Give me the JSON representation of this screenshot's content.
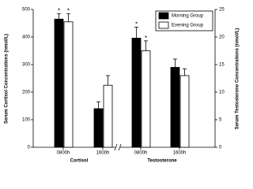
{
  "chart_data": [
    {
      "type": "bar",
      "ylabel": "Serum Cortisol Concentrations (nmol/L)",
      "group": "Cortisol",
      "categories": [
        "0800h",
        "1600h"
      ],
      "ylim": [
        0,
        500
      ],
      "yticks": [
        0,
        100,
        200,
        300,
        400,
        500
      ],
      "legend": "upper right",
      "series": [
        {
          "name": "Morning Group",
          "color": "#000000",
          "values": [
            465,
            140
          ],
          "errors": [
            20,
            25
          ],
          "markers": [
            "*",
            null
          ]
        },
        {
          "name": "Evening Group",
          "color": "#ffffff",
          "values": [
            455,
            225
          ],
          "errors": [
            30,
            35
          ],
          "markers": [
            "*",
            null
          ]
        }
      ]
    },
    {
      "type": "bar",
      "y2label": "Serum Testosterone Concentrations (nmol/L)",
      "group": "Testosterone",
      "categories": [
        "0800h",
        "1600h"
      ],
      "y2lim": [
        0,
        25
      ],
      "y2ticks": [
        0,
        5,
        10,
        15,
        20,
        25
      ],
      "series": [
        {
          "axis": "y2",
          "color": "#000000",
          "values": [
            19.8,
            14.5
          ],
          "errors": [
            2,
            1.5
          ],
          "markers": [
            "*",
            null
          ]
        },
        {
          "axis": "y2",
          "color": "#ffffff",
          "values": [
            17.5,
            13
          ],
          "errors": [
            1.8,
            1.2
          ],
          "markers": [
            "*",
            null
          ]
        }
      ]
    }
  ]
}
